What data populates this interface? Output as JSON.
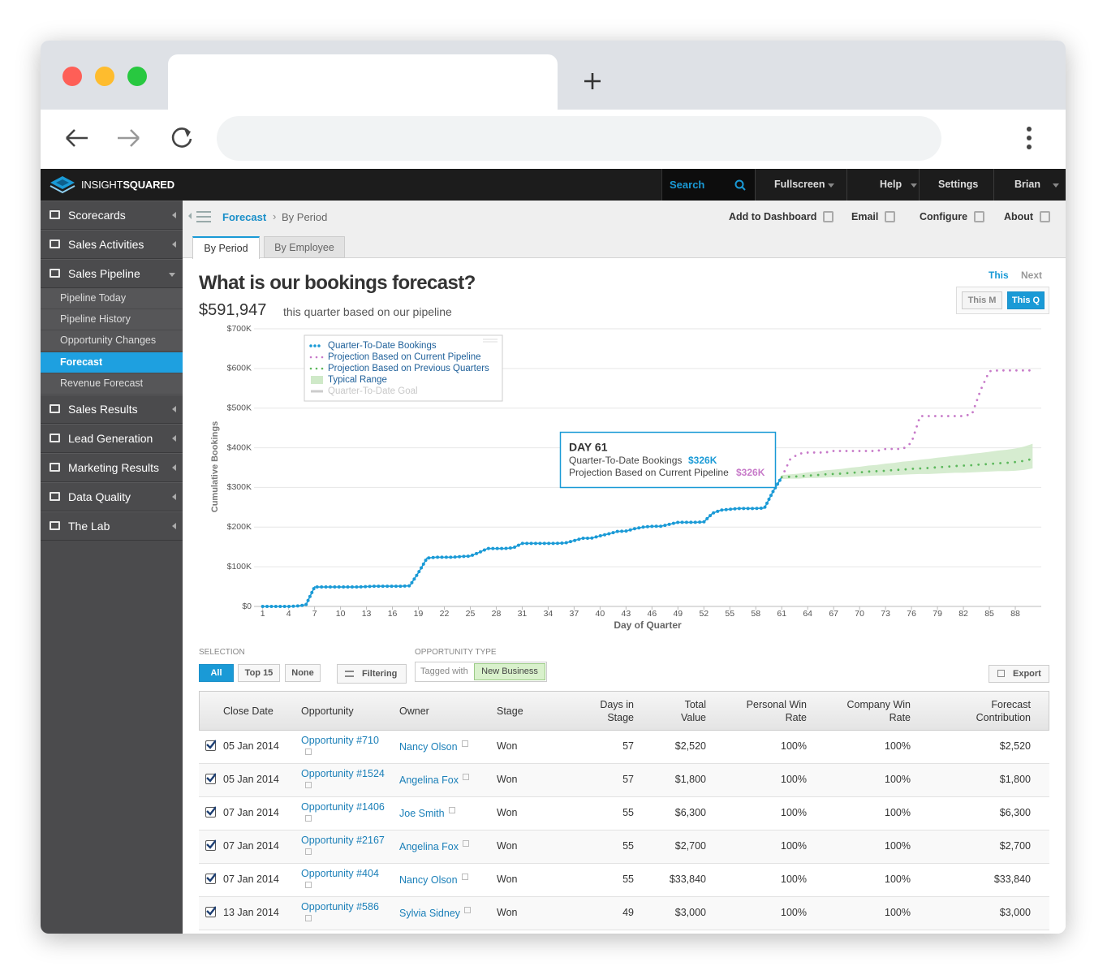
{
  "app_header": {
    "brand_light": "INSIGHT",
    "brand_bold": "SQUARED",
    "search": "Search",
    "menu": [
      "Fullscreen",
      "Help",
      "Settings",
      "Brian"
    ]
  },
  "sidebar": {
    "items": [
      {
        "label": "Scorecards"
      },
      {
        "label": "Sales Activities"
      },
      {
        "label": "Sales Pipeline",
        "children": [
          "Pipeline Today",
          "Pipeline History",
          "Opportunity Changes",
          "Forecast",
          "Revenue Forecast"
        ],
        "active_child": 3
      },
      {
        "label": "Sales Results"
      },
      {
        "label": "Lead Generation"
      },
      {
        "label": "Marketing Results"
      },
      {
        "label": "Data Quality"
      },
      {
        "label": "The Lab"
      }
    ]
  },
  "breadcrumb": {
    "section": "Forecast",
    "page": "By Period"
  },
  "toolbar": [
    "Add to Dashboard",
    "Email",
    "Configure",
    "About"
  ],
  "tabs": {
    "items": [
      "By Period",
      "By Employee"
    ],
    "active": 0
  },
  "period": {
    "range": [
      "This",
      "Next"
    ],
    "granularity": [
      "This M",
      "This Q"
    ]
  },
  "headline": {
    "question": "What is our bookings forecast?",
    "amount": "$591,947",
    "caption": "this quarter based on our pipeline"
  },
  "chart_data": {
    "type": "line",
    "x_label": "Day of Quarter",
    "y_label": "Cumulative Bookings",
    "xlim": [
      0,
      91
    ],
    "xticks": [
      1,
      4,
      7,
      10,
      13,
      16,
      19,
      22,
      25,
      28,
      31,
      34,
      37,
      40,
      43,
      46,
      49,
      52,
      55,
      58,
      61,
      64,
      67,
      70,
      73,
      76,
      79,
      82,
      85,
      88
    ],
    "ylim": [
      0,
      700000
    ],
    "yticks": [
      {
        "value": 0,
        "label": "$0"
      },
      {
        "value": 100000,
        "label": "$100K"
      },
      {
        "value": 200000,
        "label": "$200K"
      },
      {
        "value": 300000,
        "label": "$300K"
      },
      {
        "value": 400000,
        "label": "$400K"
      },
      {
        "value": 500000,
        "label": "$500K"
      },
      {
        "value": 600000,
        "label": "$600K"
      },
      {
        "value": 700000,
        "label": "$700K"
      }
    ],
    "grid": true,
    "series": [
      {
        "name": "Quarter-To-Date Bookings",
        "color": "#1a9ad6",
        "x": [
          1,
          2,
          3,
          4,
          5,
          6,
          7,
          8,
          9,
          10,
          11,
          12,
          13,
          14,
          15,
          16,
          17,
          18,
          19,
          20,
          21,
          22,
          23,
          24,
          25,
          26,
          27,
          28,
          29,
          30,
          31,
          32,
          33,
          34,
          35,
          36,
          37,
          38,
          39,
          40,
          41,
          42,
          43,
          44,
          45,
          46,
          47,
          48,
          49,
          50,
          51,
          52,
          53,
          54,
          55,
          56,
          57,
          58,
          59,
          60,
          61
        ],
        "values": [
          0,
          0,
          0,
          0,
          1000,
          4000,
          49000,
          49000,
          49000,
          49000,
          49000,
          49000,
          50000,
          51000,
          51000,
          51000,
          51000,
          52000,
          85000,
          122000,
          124000,
          124000,
          124000,
          126000,
          127000,
          136000,
          146000,
          146000,
          146000,
          148000,
          159000,
          159000,
          159000,
          159000,
          159000,
          160000,
          166000,
          172000,
          172000,
          178000,
          183000,
          189000,
          190000,
          196000,
          200000,
          202000,
          202000,
          207000,
          212000,
          212000,
          212000,
          213000,
          235000,
          243000,
          245000,
          247000,
          247000,
          247000,
          248000,
          290000,
          326000
        ]
      },
      {
        "name": "Projection Based on Current Pipeline",
        "color": "#c77ac9",
        "x": [
          61,
          62,
          63,
          64,
          65,
          66,
          67,
          68,
          69,
          70,
          71,
          72,
          73,
          74,
          75,
          76,
          77,
          78,
          79,
          80,
          81,
          82,
          83,
          84,
          85,
          86,
          87,
          88,
          89,
          90
        ],
        "values": [
          326000,
          372000,
          385000,
          388000,
          388000,
          388000,
          392000,
          392000,
          392000,
          392000,
          392000,
          392000,
          397000,
          397000,
          397000,
          413000,
          480000,
          480000,
          480000,
          480000,
          480000,
          480000,
          485000,
          546000,
          593000,
          595000,
          595000,
          595000,
          595000,
          595000
        ]
      },
      {
        "name": "Projection Based on Previous Quarters",
        "color": "#5cb85c",
        "x": [
          61,
          62,
          63,
          64,
          65,
          66,
          67,
          68,
          69,
          70,
          71,
          72,
          73,
          74,
          75,
          76,
          77,
          78,
          79,
          80,
          81,
          82,
          83,
          84,
          85,
          86,
          87,
          88,
          89,
          90
        ],
        "values": [
          326000,
          327000,
          328000,
          330000,
          331000,
          333000,
          334000,
          335000,
          337000,
          338000,
          340000,
          341000,
          342000,
          344000,
          345000,
          347000,
          348000,
          349000,
          351000,
          352000,
          354000,
          355000,
          356000,
          358000,
          359000,
          361000,
          362000,
          364000,
          367000,
          372000
        ]
      }
    ],
    "band": {
      "name": "Typical Range",
      "color": "#cfe9c8",
      "x": [
        61,
        62,
        63,
        64,
        65,
        66,
        67,
        68,
        69,
        70,
        71,
        72,
        73,
        74,
        75,
        76,
        77,
        78,
        79,
        80,
        81,
        82,
        83,
        84,
        85,
        86,
        87,
        88,
        89,
        90
      ],
      "low": [
        321000,
        322000,
        322000,
        324000,
        324000,
        325000,
        326000,
        326000,
        327000,
        328000,
        329000,
        330000,
        330000,
        331000,
        332000,
        333000,
        334000,
        334000,
        335000,
        336000,
        337000,
        337000,
        338000,
        339000,
        340000,
        341000,
        341000,
        342000,
        344000,
        348000
      ],
      "high": [
        331000,
        333000,
        335000,
        338000,
        340000,
        343000,
        345000,
        347000,
        350000,
        352000,
        355000,
        357000,
        360000,
        362000,
        365000,
        367000,
        370000,
        372000,
        375000,
        377000,
        380000,
        382000,
        385000,
        387000,
        390000,
        393000,
        395000,
        398000,
        403000,
        410000
      ]
    },
    "legend_only": [
      {
        "name": "Quarter-To-Date Goal",
        "color": "#cccccc"
      }
    ],
    "tooltip": {
      "title": "DAY 61",
      "rows": [
        {
          "label": "Quarter-To-Date Bookings",
          "value": "$326K"
        },
        {
          "label": "Projection Based on Current Pipeline",
          "value": "$326K"
        }
      ]
    }
  },
  "filters": {
    "selection_label": "SELECTION",
    "selection": [
      "All",
      "Top 15",
      "None"
    ],
    "selected": 0,
    "filtering": "Filtering",
    "type_label": "OPPORTUNITY TYPE",
    "tagged_with": "Tagged with",
    "tag": "New Business",
    "export": "Export"
  },
  "table": {
    "columns": [
      "Close Date",
      "Opportunity",
      "Owner",
      "Stage",
      "Days in Stage",
      "Total Value",
      "Personal Win Rate",
      "Company Win Rate",
      "Forecast Contribution"
    ],
    "rows": [
      [
        "05 Jan 2014",
        "Opportunity #710",
        "Nancy Olson",
        "Won",
        "57",
        "$2,520",
        "100%",
        "100%",
        "$2,520"
      ],
      [
        "05 Jan 2014",
        "Opportunity #1524",
        "Angelina Fox",
        "Won",
        "57",
        "$1,800",
        "100%",
        "100%",
        "$1,800"
      ],
      [
        "07 Jan 2014",
        "Opportunity #1406",
        "Joe Smith",
        "Won",
        "55",
        "$6,300",
        "100%",
        "100%",
        "$6,300"
      ],
      [
        "07 Jan 2014",
        "Opportunity #2167",
        "Angelina Fox",
        "Won",
        "55",
        "$2,700",
        "100%",
        "100%",
        "$2,700"
      ],
      [
        "07 Jan 2014",
        "Opportunity #404",
        "Nancy Olson",
        "Won",
        "55",
        "$33,840",
        "100%",
        "100%",
        "$33,840"
      ],
      [
        "13 Jan 2014",
        "Opportunity #586",
        "Sylvia Sidney",
        "Won",
        "49",
        "$3,000",
        "100%",
        "100%",
        "$3,000"
      ]
    ]
  }
}
